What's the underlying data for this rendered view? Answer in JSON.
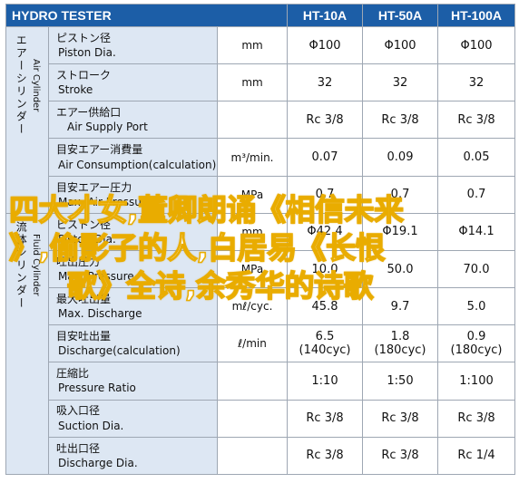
{
  "header": {
    "brand": "HYDRO TESTER",
    "models": [
      "HT-10A",
      "HT-50A",
      "HT-100A"
    ]
  },
  "groups": {
    "air": {
      "jp": "エアーシリンダー",
      "en": "Air Cylinder"
    },
    "fluid": {
      "jp": "流体シリンダー",
      "en": "Fluid Cylinder"
    }
  },
  "rows": [
    {
      "jp": "ピストン径",
      "en": "Piston Dia.",
      "unit": "mm",
      "values": [
        "Φ100",
        "Φ100",
        "Φ100"
      ]
    },
    {
      "jp": "ストローク",
      "en": "Stroke",
      "unit": "mm",
      "values": [
        "32",
        "32",
        "32"
      ]
    },
    {
      "jp": "エアー供給口",
      "en": "Air Supply Port",
      "unit": "",
      "values": [
        "Rc 3/8",
        "Rc 3/8",
        "Rc 3/8"
      ]
    },
    {
      "jp": "目安エアー消費量",
      "en": "Air Consumption(calculation)",
      "unit": "m³/min.",
      "values": [
        "0.07",
        "0.09",
        "0.05"
      ]
    },
    {
      "jp": "目安エアー圧力",
      "en": "Max. Air Pressure",
      "unit": "MPa",
      "values": [
        "0.7",
        "0.7",
        "0.7"
      ]
    },
    {
      "jp": "ピストン径",
      "en": "Piston Dia.",
      "unit": "mm",
      "values": [
        "Φ42.4",
        "Φ19.1",
        "Φ14.1"
      ]
    },
    {
      "jp": "吐出圧力",
      "en": "Max. Pressure",
      "unit": "MPa",
      "values": [
        "10.0",
        "50.0",
        "70.0"
      ]
    },
    {
      "jp": "最大吐出量",
      "en": "Max. Discharge",
      "unit": "mℓ/cyc.",
      "values": [
        "45.8",
        "9.7",
        "5.0"
      ]
    },
    {
      "jp": "目安吐出量",
      "en": "Discharge(calculation)",
      "unit": "ℓ/min",
      "values": [
        "6.5",
        "1.8",
        "0.9"
      ],
      "subs": [
        "(140cyc)",
        "(180cyc)",
        "(180cyc)"
      ]
    },
    {
      "jp": "圧縮比",
      "en": "Pressure Ratio",
      "unit": "",
      "values": [
        "1:10",
        "1:50",
        "1:100"
      ]
    },
    {
      "jp": "吸入口径",
      "en": "Suction Dia.",
      "unit": "",
      "values": [
        "Rc 3/8",
        "Rc 3/8",
        "Rc 3/8"
      ]
    },
    {
      "jp": "吐出口径",
      "en": "Discharge Dia.",
      "unit": "",
      "values": [
        "Rc 3/8",
        "Rc 3/8",
        "Rc 1/4"
      ]
    }
  ],
  "overlay": {
    "line1": "四大才女,董卿朗诵《相信未来",
    "line2": "》,偷影子的人,白居易《长恨",
    "line3": "歌》全诗,余秀华的诗歌"
  }
}
